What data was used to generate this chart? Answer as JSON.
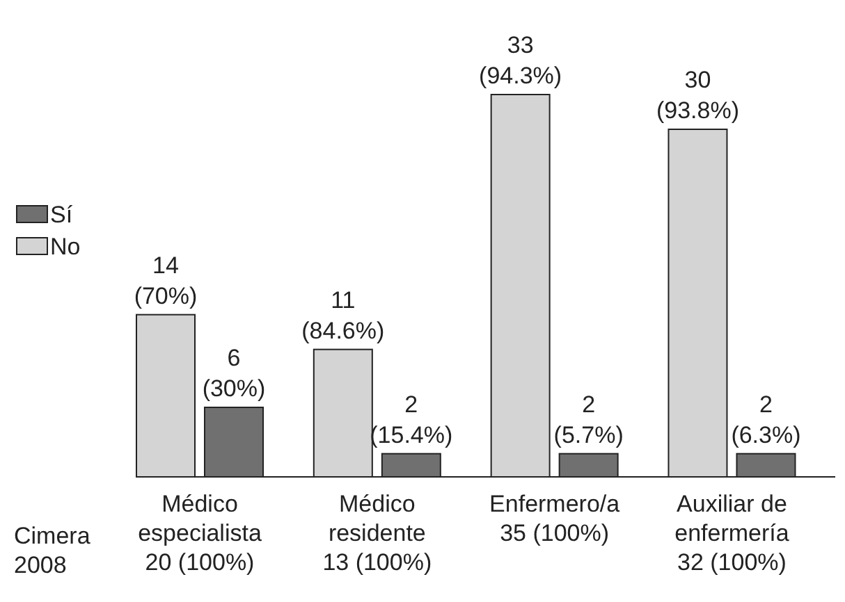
{
  "chart_data": {
    "type": "bar",
    "categories": [
      "Médico\nespecialista\n20 (100%)",
      "Médico\nresidente\n13 (100%)",
      "Enfermero/a\n35 (100%)",
      "Auxiliar de\nenfermería\n32 (100%)"
    ],
    "series": [
      {
        "name": "No",
        "color": "#d4d4d4",
        "values": [
          14,
          11,
          33,
          30
        ],
        "value_labels": [
          "14\n(70%)",
          "11\n(84.6%)",
          "33\n(94.3%)",
          "30\n(93.8%)"
        ]
      },
      {
        "name": "Sí",
        "color": "#707070",
        "values": [
          6,
          2,
          2,
          2
        ],
        "value_labels": [
          "6\n(30%)",
          "2\n(15.4%)",
          "2\n(5.7%)",
          "2\n(6.3%)"
        ]
      }
    ],
    "legend": "top left",
    "annotations": [
      "Cimera\n2008"
    ]
  }
}
